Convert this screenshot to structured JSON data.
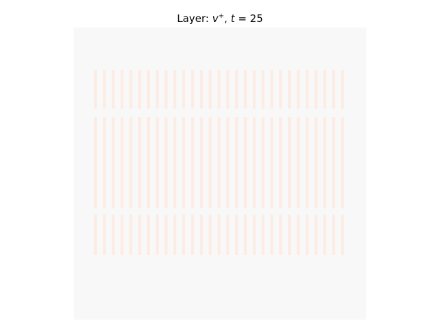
{
  "title": {
    "prefix": "Layer: ",
    "var": "v",
    "sup": "+",
    "sep": ", ",
    "tvar": "t",
    "eq": " = 25"
  },
  "colors": {
    "background": "#f8f8f8",
    "stripe": "#fcece3"
  },
  "chart_data": {
    "type": "heatmap",
    "title": "Layer: v+, t = 25",
    "xlabel": "",
    "ylabel": "",
    "axes_visible": false,
    "grid": false,
    "pattern": {
      "columns": 29,
      "bands": 3,
      "base_value": 0.0,
      "stripe_value": 0.06
    }
  }
}
